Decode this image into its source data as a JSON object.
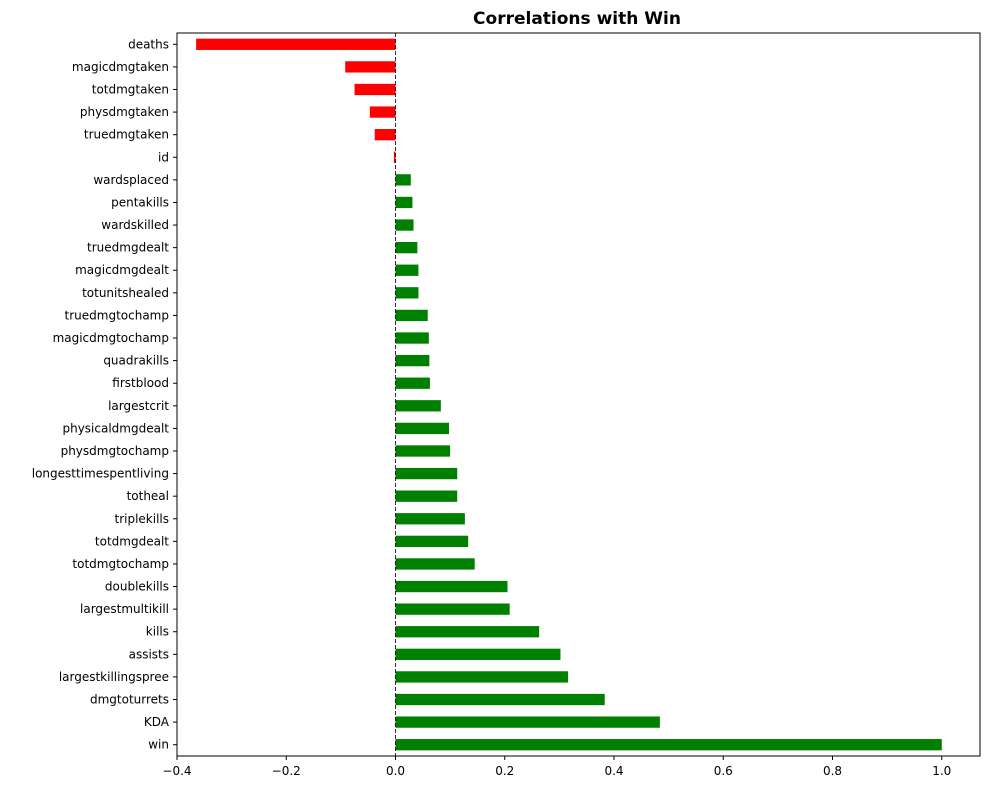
{
  "chart_data": {
    "type": "bar",
    "orientation": "horizontal",
    "title": "Correlations with Win",
    "xlabel": "",
    "ylabel": "",
    "xlim": [
      -0.4,
      1.07
    ],
    "xticks": [
      -0.4,
      -0.2,
      0.0,
      0.2,
      0.4,
      0.6,
      0.8,
      1.0
    ],
    "xtick_labels": [
      "−0.4",
      "−0.2",
      "0.0",
      "0.2",
      "0.4",
      "0.6",
      "0.8",
      "1.0"
    ],
    "zero_line": "dashed",
    "grid": false,
    "colors": {
      "positive": "#008000",
      "negative": "#ff0000",
      "zero_line": "#000000"
    },
    "categories": [
      "deaths",
      "magicdmgtaken",
      "totdmgtaken",
      "physdmgtaken",
      "truedmgtaken",
      "id",
      "wardsplaced",
      "pentakills",
      "wardskilled",
      "truedmgdealt",
      "magicdmgdealt",
      "totunitshealed",
      "truedmgtochamp",
      "magicdmgtochamp",
      "quadrakills",
      "firstblood",
      "largestcrit",
      "physicaldmgdealt",
      "physdmgtochamp",
      "longesttimespentliving",
      "totheal",
      "triplekills",
      "totdmgdealt",
      "totdmgtochamp",
      "doublekills",
      "largestmultikill",
      "kills",
      "assists",
      "largestkillingspree",
      "dmgtoturrets",
      "KDA",
      "win"
    ],
    "values": [
      -0.365,
      -0.092,
      -0.075,
      -0.047,
      -0.038,
      -0.003,
      0.028,
      0.031,
      0.033,
      0.04,
      0.042,
      0.042,
      0.059,
      0.061,
      0.062,
      0.063,
      0.083,
      0.098,
      0.1,
      0.113,
      0.113,
      0.127,
      0.133,
      0.145,
      0.205,
      0.209,
      0.263,
      0.302,
      0.316,
      0.383,
      0.484,
      1.0
    ]
  }
}
